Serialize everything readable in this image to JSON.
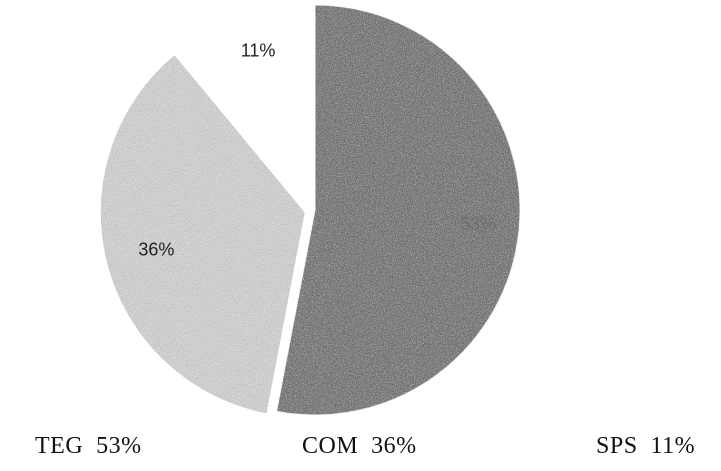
{
  "chart_data": {
    "type": "pie",
    "slices": [
      {
        "label": "TEG",
        "value": 53,
        "value_label": "53%",
        "legend_text": "TEG  53%",
        "color": "#6f6f6f",
        "texture": "dark-stipple"
      },
      {
        "label": "COM",
        "value": 36,
        "value_label": "36%",
        "legend_text": "COM  36%",
        "color": "#c2c2c2",
        "texture": "light-stipple"
      },
      {
        "label": "SPS",
        "value": 11,
        "value_label": "11%",
        "legend_text": "SPS  11%",
        "color": "#ffffff",
        "texture": "none"
      }
    ],
    "start_angle": "12 o'clock",
    "direction": "clockwise",
    "exploded": [
      "COM"
    ],
    "legend_position": "bottom"
  }
}
